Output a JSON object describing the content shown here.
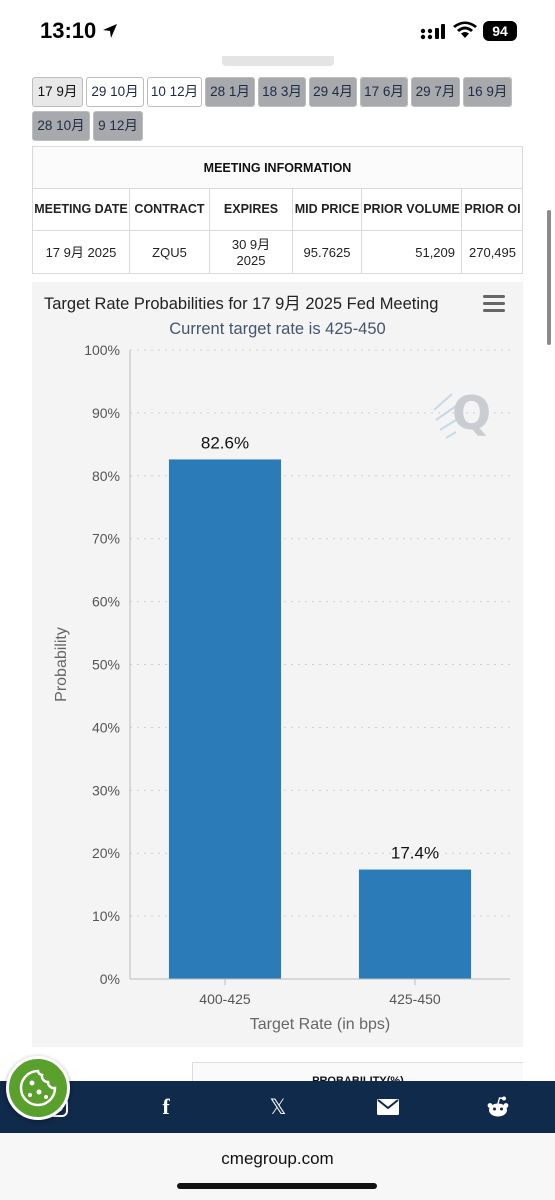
{
  "status": {
    "time": "13:10",
    "battery": "94"
  },
  "tabs": [
    {
      "label": "17 9月",
      "style": "selected"
    },
    {
      "label": "29 10月",
      "style": "light"
    },
    {
      "label": "10 12月",
      "style": "light"
    },
    {
      "label": "28 1月",
      "style": "dark"
    },
    {
      "label": "18 3月",
      "style": "dark"
    },
    {
      "label": "29 4月",
      "style": "dark"
    },
    {
      "label": "17 6月",
      "style": "dark"
    },
    {
      "label": "29 7月",
      "style": "dark"
    },
    {
      "label": "16 9月",
      "style": "dark"
    },
    {
      "label": "28 10月",
      "style": "dark"
    },
    {
      "label": "9 12月",
      "style": "dark"
    }
  ],
  "meeting_info": {
    "title": "MEETING INFORMATION",
    "headers": {
      "meeting_date": "MEETING DATE",
      "contract": "CONTRACT",
      "expires": "EXPIRES",
      "mid_price": "MID PRICE",
      "prior_volume": "PRIOR VOLUME",
      "prior_oi": "PRIOR OI"
    },
    "row": {
      "meeting_date": "17 9月 2025",
      "contract": "ZQU5",
      "expires": "30 9月 2025",
      "mid_price": "95.7625",
      "prior_volume": "51,209",
      "prior_oi": "270,495"
    }
  },
  "chart_data": {
    "type": "bar",
    "title": "Target Rate Probabilities for 17 9月 2025 Fed Meeting",
    "subtitle": "Current target rate is 425-450",
    "xlabel": "Target Rate (in bps)",
    "ylabel": "Probability",
    "categories": [
      "400-425",
      "425-450"
    ],
    "values": [
      82.6,
      17.4
    ],
    "data_labels": [
      "82.6%",
      "17.4%"
    ],
    "ylim": [
      0,
      100
    ],
    "yticks": [
      "0%",
      "10%",
      "20%",
      "30%",
      "40%",
      "50%",
      "60%",
      "70%",
      "80%",
      "90%",
      "100%"
    ],
    "grid": true,
    "bar_color": "#2b7bb9"
  },
  "probability_peek": "PROBABILITY(%)",
  "share_icons": [
    "instagram-icon",
    "facebook-icon",
    "x-icon",
    "mail-icon",
    "reddit-icon"
  ],
  "share_glyphs": {
    "facebook": "f",
    "x": "𝕏"
  },
  "url": "cmegroup.com",
  "colors": {
    "share_bar": "#0f2a4a",
    "cookie_button": "#5aa02c",
    "tab_dark": "#a7a9ac"
  }
}
